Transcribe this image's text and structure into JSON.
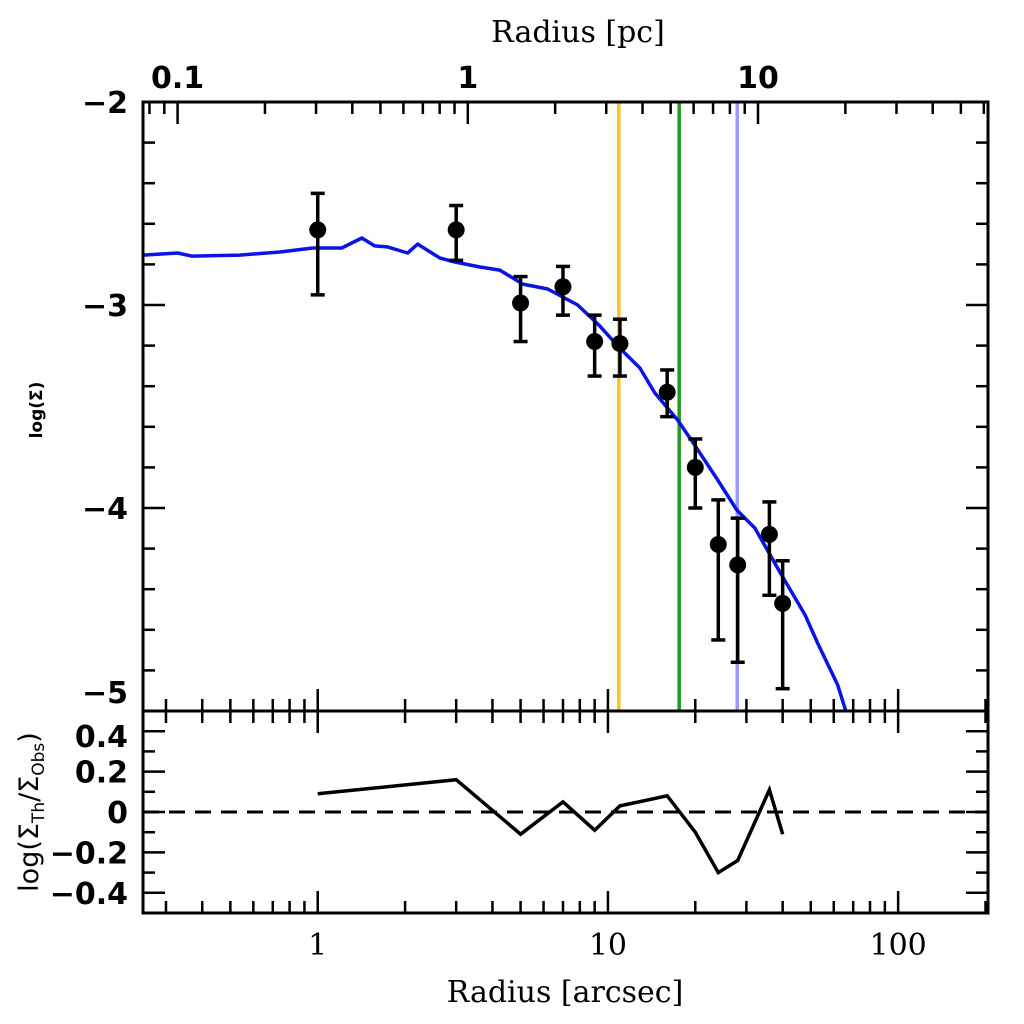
{
  "chart_data": [
    {
      "panel": "main",
      "type": "scatter",
      "xscale": "log",
      "xlim": [
        0.25,
        204
      ],
      "ylim": [
        -5,
        -2
      ],
      "xlabel": "Radius [arcsec]",
      "ylabel": "log(Σ)",
      "top_xlabel": "Radius [pc]",
      "top_x_ticks": [
        {
          "value": 0.1,
          "label": "0.1"
        },
        {
          "value": 1,
          "label": "1"
        },
        {
          "value": 10,
          "label": "10"
        }
      ],
      "pc_per_arcsec": 0.304,
      "y_ticks": [
        {
          "value": -2,
          "label": "−2"
        },
        {
          "value": -3,
          "label": "−3"
        },
        {
          "value": -4,
          "label": "−4"
        },
        {
          "value": -5,
          "label": "−5"
        }
      ],
      "observed": {
        "name": "observed",
        "color": "#000000",
        "points": [
          {
            "x": 1,
            "y": -2.63,
            "ylo": -2.95,
            "yhi": -2.45
          },
          {
            "x": 3,
            "y": -2.63,
            "ylo": -2.78,
            "yhi": -2.51
          },
          {
            "x": 5,
            "y": -2.99,
            "ylo": -3.18,
            "yhi": -2.86
          },
          {
            "x": 7,
            "y": -2.91,
            "ylo": -3.05,
            "yhi": -2.81
          },
          {
            "x": 9,
            "y": -3.18,
            "ylo": -3.35,
            "yhi": -3.05
          },
          {
            "x": 11,
            "y": -3.19,
            "ylo": -3.35,
            "yhi": -3.07
          },
          {
            "x": 16,
            "y": -3.43,
            "ylo": -3.55,
            "yhi": -3.32
          },
          {
            "x": 20,
            "y": -3.8,
            "ylo": -4.0,
            "yhi": -3.66
          },
          {
            "x": 24,
            "y": -4.18,
            "ylo": -4.65,
            "yhi": -3.96
          },
          {
            "x": 28,
            "y": -4.28,
            "ylo": -4.76,
            "yhi": -4.05
          },
          {
            "x": 36,
            "y": -4.13,
            "ylo": -4.43,
            "yhi": -3.97
          },
          {
            "x": 40,
            "y": -4.47,
            "ylo": -4.89,
            "yhi": -4.26
          }
        ]
      },
      "model": {
        "name": "model",
        "color": "#0a14e6",
        "x": [
          0.249,
          0.329,
          0.368,
          0.538,
          0.74,
          0.961,
          1.21,
          1.42,
          1.57,
          1.74,
          2.04,
          2.21,
          2.63,
          2.97,
          3.62,
          4.24,
          5.09,
          6.2,
          7.87,
          9.37,
          10.97,
          12.88,
          14.5,
          17.4,
          19.9,
          23.9,
          27.8,
          32.1,
          39.3,
          47.8,
          52.8,
          61.9,
          66.0
        ],
        "y": [
          -2.754,
          -2.744,
          -2.759,
          -2.754,
          -2.739,
          -2.719,
          -2.719,
          -2.67,
          -2.709,
          -2.714,
          -2.744,
          -2.7,
          -2.768,
          -2.788,
          -2.813,
          -2.828,
          -2.897,
          -2.921,
          -3.0,
          -3.103,
          -3.212,
          -3.31,
          -3.433,
          -3.567,
          -3.69,
          -3.862,
          -4.01,
          -4.099,
          -4.32,
          -4.527,
          -4.665,
          -4.872,
          -5.0
        ]
      },
      "vertical_lines": [
        {
          "x": 10.9,
          "color": "#ffc21f",
          "name": "orange-line"
        },
        {
          "x": 17.6,
          "color": "#1f9a22",
          "name": "green-line"
        },
        {
          "x": 27.9,
          "color": "#9a9aff",
          "name": "lightblue-line"
        }
      ]
    },
    {
      "panel": "residual",
      "type": "line",
      "xscale": "log",
      "xlim": [
        0.25,
        204
      ],
      "ylim": [
        -0.5,
        0.5
      ],
      "xlabel": "Radius [arcsec]",
      "ylabel": "log(Σ_Th/Σ_Obs)",
      "ylabel_parts": {
        "pre": "log(Σ",
        "sub1": "Th",
        "mid": "/Σ",
        "sub2": "Obs",
        "post": ")"
      },
      "x_ticks": [
        {
          "value": 1,
          "label": "1"
        },
        {
          "value": 10,
          "label": "10"
        },
        {
          "value": 100,
          "label": "100"
        }
      ],
      "y_ticks": [
        {
          "value": 0.4,
          "label": "0.4"
        },
        {
          "value": 0.2,
          "label": "0.2"
        },
        {
          "value": 0,
          "label": "0"
        },
        {
          "value": -0.2,
          "label": "−0.2"
        },
        {
          "value": -0.4,
          "label": "−0.4"
        }
      ],
      "zero_line": {
        "y": 0,
        "style": "dashed"
      },
      "series": [
        {
          "name": "residual",
          "color": "#000000",
          "x": [
            1,
            3,
            5,
            7,
            9,
            11,
            16,
            20,
            24,
            28,
            36,
            40
          ],
          "y": [
            0.09,
            0.16,
            -0.11,
            0.05,
            -0.09,
            0.03,
            0.08,
            -0.1,
            -0.3,
            -0.24,
            0.11,
            -0.11
          ]
        }
      ]
    }
  ]
}
